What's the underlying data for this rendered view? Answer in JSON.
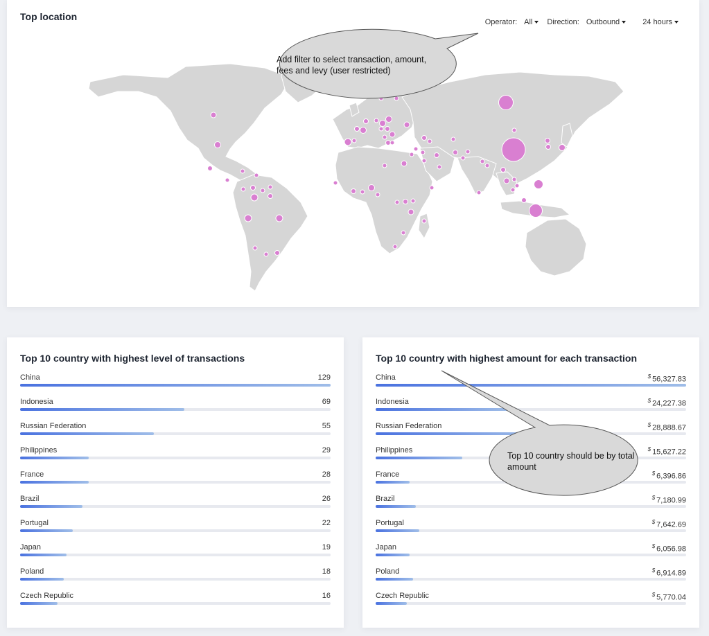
{
  "map_card": {
    "title": "Top location",
    "filters": {
      "operator_label": "Operator:",
      "operator_value": "All",
      "direction_label": "Direction:",
      "direction_value": "Outbound",
      "period_value": "24 hours"
    },
    "marker_color": "#d97fd1",
    "land_color": "#d6d6d6"
  },
  "left_card": {
    "title": "Top 10 country with highest level of transactions",
    "rows": [
      {
        "name": "China",
        "value": "129",
        "level": 1.0
      },
      {
        "name": "Indonesia",
        "value": "69",
        "level": 0.53
      },
      {
        "name": "Russian Federation",
        "value": "55",
        "level": 0.43
      },
      {
        "name": "Philippines",
        "value": "29",
        "level": 0.22
      },
      {
        "name": "France",
        "value": "28",
        "level": 0.22
      },
      {
        "name": "Brazil",
        "value": "26",
        "level": 0.2
      },
      {
        "name": "Portugal",
        "value": "22",
        "level": 0.17
      },
      {
        "name": "Japan",
        "value": "19",
        "level": 0.15
      },
      {
        "name": "Poland",
        "value": "18",
        "level": 0.14
      },
      {
        "name": "Czech Republic",
        "value": "16",
        "level": 0.12
      }
    ]
  },
  "right_card": {
    "title": "Top 10 country with highest amount for each transaction",
    "currency": "$",
    "rows": [
      {
        "name": "China",
        "value": "56,327.83",
        "level": 1.0
      },
      {
        "name": "Indonesia",
        "value": "24,227.38",
        "level": 0.43
      },
      {
        "name": "Russian Federation",
        "value": "28,888.67",
        "level": 0.51
      },
      {
        "name": "Philippines",
        "value": "15,627.22",
        "level": 0.28
      },
      {
        "name": "France",
        "value": "6,396.86",
        "level": 0.11
      },
      {
        "name": "Brazil",
        "value": "7,180.99",
        "level": 0.13
      },
      {
        "name": "Portugal",
        "value": "7,642.69",
        "level": 0.14
      },
      {
        "name": "Japan",
        "value": "6,056.98",
        "level": 0.11
      },
      {
        "name": "Poland",
        "value": "6,914.89",
        "level": 0.12
      },
      {
        "name": "Czech Republic",
        "value": "5,770.04",
        "level": 0.1
      }
    ]
  },
  "annotations": {
    "note1": "Add filter to select transaction, amount, fees and levy (user restricted)",
    "note2": "Top 10 country should be by total amount"
  }
}
